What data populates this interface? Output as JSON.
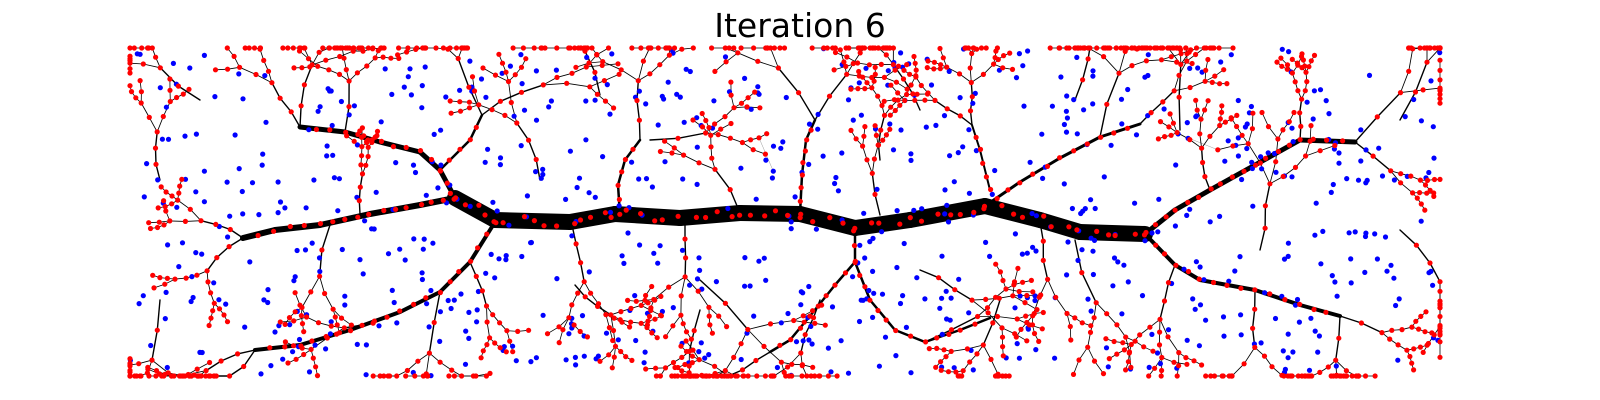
{
  "title": "Iteration 6",
  "colors": {
    "background": "#ffffff",
    "edge": "#000000",
    "tree_node": "#ff0000",
    "unreached_node": "#0000ff",
    "faint_edge": "#9a9a9a"
  },
  "description_free_legend": null
}
